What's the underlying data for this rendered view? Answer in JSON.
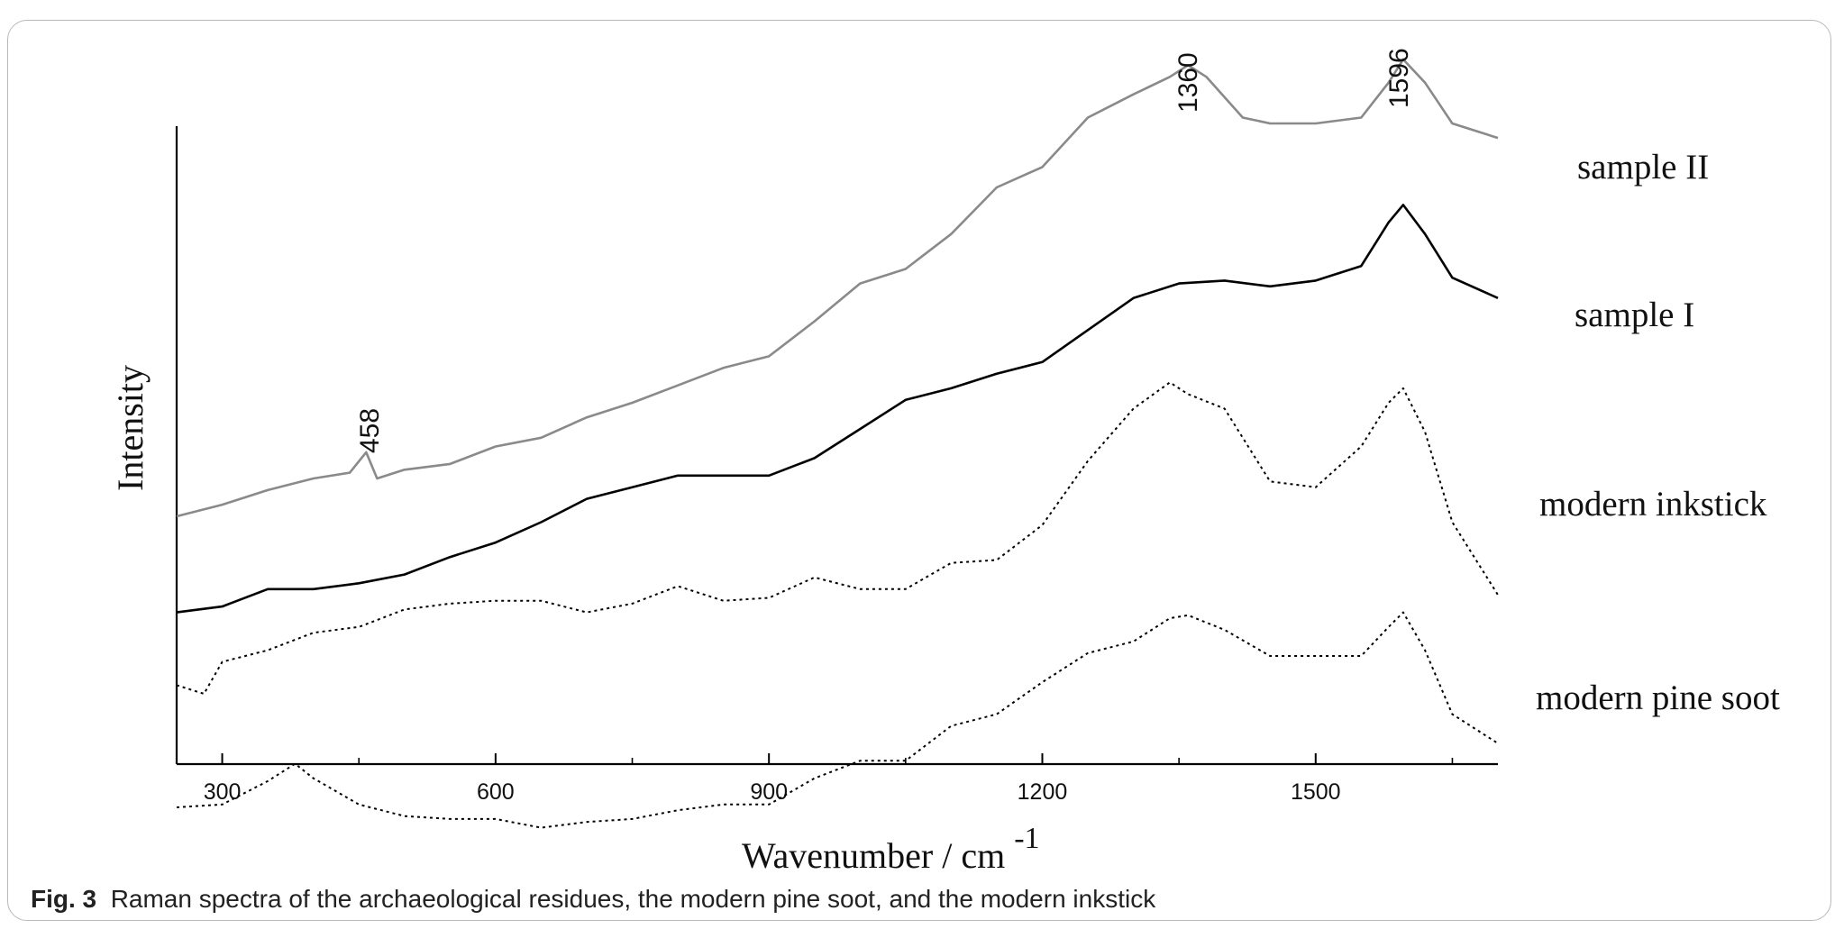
{
  "caption": {
    "figure_label": "Fig. 3",
    "text": "Raman spectra of the archaeological residues, the modern pine soot, and the modern inkstick"
  },
  "chart_data": {
    "type": "line",
    "xlabel": "Wavenumber / cm",
    "xlabel_superscript": "-1",
    "ylabel": "Intensity",
    "xlim": [
      250,
      1700
    ],
    "x_ticks": [
      300,
      600,
      900,
      1200,
      1500
    ],
    "y_ticks_shown": false,
    "grid": false,
    "annotations": [
      {
        "text": "458",
        "x": 458,
        "series": "sample II"
      },
      {
        "text": "1360",
        "x": 1360,
        "series": "sample II"
      },
      {
        "text": "1596",
        "x": 1596,
        "series": "sample II"
      }
    ],
    "series": [
      {
        "name": "sample II",
        "color": "#8a8a8a",
        "style": "solid",
        "x": [
          250,
          300,
          350,
          400,
          440,
          458,
          470,
          500,
          550,
          600,
          650,
          700,
          750,
          800,
          850,
          900,
          950,
          1000,
          1050,
          1100,
          1150,
          1200,
          1250,
          1300,
          1340,
          1360,
          1380,
          1420,
          1450,
          1500,
          1550,
          1580,
          1596,
          1620,
          1650,
          1700
        ],
        "y": [
          0.13,
          0.17,
          0.22,
          0.26,
          0.28,
          0.35,
          0.26,
          0.29,
          0.31,
          0.37,
          0.4,
          0.47,
          0.52,
          0.58,
          0.64,
          0.68,
          0.8,
          0.93,
          0.98,
          1.1,
          1.26,
          1.33,
          1.5,
          1.58,
          1.64,
          1.68,
          1.64,
          1.5,
          1.48,
          1.48,
          1.5,
          1.62,
          1.7,
          1.62,
          1.48,
          1.43
        ]
      },
      {
        "name": "sample I",
        "color": "#000000",
        "style": "solid",
        "x": [
          250,
          300,
          350,
          400,
          450,
          500,
          550,
          600,
          650,
          700,
          750,
          800,
          850,
          900,
          950,
          1000,
          1050,
          1100,
          1150,
          1200,
          1250,
          1300,
          1350,
          1400,
          1450,
          1500,
          1550,
          1580,
          1596,
          1620,
          1650,
          1700
        ],
        "y": [
          -0.2,
          -0.18,
          -0.12,
          -0.12,
          -0.1,
          -0.07,
          -0.01,
          0.04,
          0.11,
          0.19,
          0.23,
          0.27,
          0.27,
          0.27,
          0.33,
          0.43,
          0.53,
          0.57,
          0.62,
          0.66,
          0.77,
          0.88,
          0.93,
          0.94,
          0.92,
          0.94,
          0.99,
          1.14,
          1.2,
          1.1,
          0.95,
          0.88
        ]
      },
      {
        "name": "modern inkstick",
        "color": "#000000",
        "style": "dotted",
        "x": [
          250,
          280,
          300,
          350,
          400,
          450,
          500,
          550,
          600,
          650,
          700,
          750,
          800,
          850,
          900,
          950,
          1000,
          1050,
          1100,
          1150,
          1200,
          1250,
          1300,
          1340,
          1360,
          1400,
          1450,
          1500,
          1550,
          1580,
          1596,
          1620,
          1650,
          1700
        ],
        "y": [
          -0.45,
          -0.48,
          -0.37,
          -0.33,
          -0.27,
          -0.25,
          -0.19,
          -0.17,
          -0.16,
          -0.16,
          -0.2,
          -0.17,
          -0.11,
          -0.16,
          -0.15,
          -0.08,
          -0.12,
          -0.12,
          -0.03,
          -0.02,
          0.1,
          0.32,
          0.5,
          0.59,
          0.55,
          0.5,
          0.25,
          0.23,
          0.37,
          0.52,
          0.57,
          0.42,
          0.11,
          -0.14
        ]
      },
      {
        "name": "modern pine soot",
        "color": "#000000",
        "style": "dotted",
        "x": [
          250,
          300,
          350,
          380,
          400,
          450,
          500,
          550,
          600,
          650,
          700,
          750,
          800,
          850,
          900,
          950,
          1000,
          1050,
          1100,
          1150,
          1200,
          1250,
          1300,
          1340,
          1360,
          1400,
          1450,
          1500,
          1550,
          1580,
          1596,
          1620,
          1650,
          1700
        ],
        "y": [
          -0.87,
          -0.86,
          -0.78,
          -0.72,
          -0.77,
          -0.86,
          -0.9,
          -0.91,
          -0.91,
          -0.94,
          -0.92,
          -0.91,
          -0.88,
          -0.86,
          -0.86,
          -0.77,
          -0.71,
          -0.71,
          -0.59,
          -0.55,
          -0.44,
          -0.34,
          -0.3,
          -0.22,
          -0.21,
          -0.26,
          -0.35,
          -0.35,
          -0.35,
          -0.25,
          -0.2,
          -0.33,
          -0.55,
          -0.65
        ]
      }
    ]
  }
}
